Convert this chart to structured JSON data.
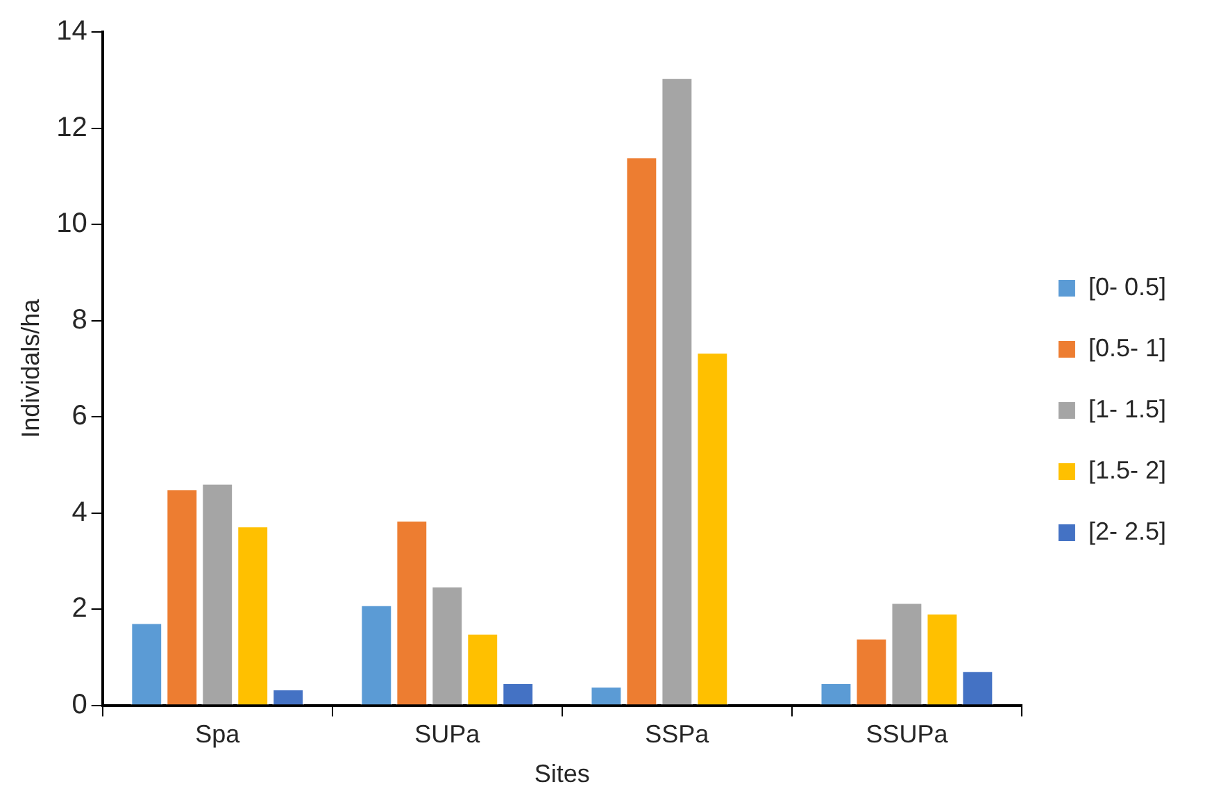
{
  "chart_data": {
    "type": "bar",
    "xlabel": "Sites",
    "ylabel": "Individals/ha",
    "categories": [
      "Spa",
      "SUPa",
      "SSPa",
      "SSUPa"
    ],
    "series": [
      {
        "name": "[0- 0.5]",
        "color": "#5b9bd5",
        "values": [
          1.72,
          2.09,
          0.4,
          0.47
        ]
      },
      {
        "name": "[0.5- 1]",
        "color": "#ed7d31",
        "values": [
          4.5,
          3.85,
          11.4,
          1.4
        ]
      },
      {
        "name": "[1- 1.5]",
        "color": "#a5a5a5",
        "values": [
          4.62,
          2.48,
          13.05,
          2.14
        ]
      },
      {
        "name": "[1.5- 2]",
        "color": "#ffc000",
        "values": [
          3.73,
          1.5,
          7.34,
          1.92
        ]
      },
      {
        "name": "[2- 2.5]",
        "color": "#4472c4",
        "values": [
          0.34,
          0.47,
          0,
          0.72
        ]
      }
    ],
    "ylim": [
      0,
      14
    ],
    "yticks": [
      0,
      2,
      4,
      6,
      8,
      10,
      12,
      14
    ],
    "grid": false,
    "legend": "right"
  }
}
